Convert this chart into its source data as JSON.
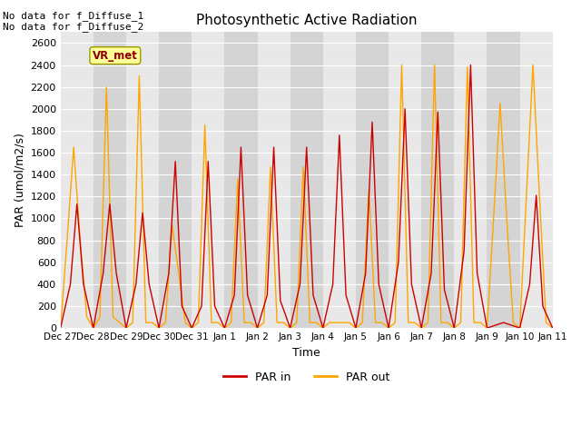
{
  "title": "Photosynthetic Active Radiation",
  "xlabel": "Time",
  "ylabel": "PAR (umol/m2/s)",
  "text_top_left": "No data for f_Diffuse_1\nNo data for f_Diffuse_2",
  "legend_box_label": "VR_met",
  "ylim": [
    0,
    2700
  ],
  "bg_color": "#e8e8e8",
  "bg_color2": "#d4d4d4",
  "par_in_color": "#cc0000",
  "par_out_color": "#ffa500",
  "tick_labels": [
    "Dec 27",
    "Dec 28",
    "Dec 29",
    "Dec 30",
    "Dec 31",
    "Jan 1",
    "Jan 2",
    "Jan 3",
    "Jan 4",
    "Jan 5",
    "Jan 6",
    "Jan 7",
    "Jan 8",
    "Jan 9",
    "Jan 10",
    "Jan 11"
  ],
  "figsize": [
    6.4,
    4.8
  ],
  "dpi": 100,
  "par_in_x": [
    0.0,
    0.3,
    0.5,
    0.7,
    1.0,
    1.0,
    1.3,
    1.5,
    1.7,
    2.0,
    2.0,
    2.3,
    2.5,
    2.7,
    3.0,
    3.0,
    3.3,
    3.5,
    3.7,
    4.0,
    4.0,
    4.3,
    4.5,
    4.7,
    5.0,
    5.0,
    5.3,
    5.5,
    5.7,
    6.0,
    6.0,
    6.3,
    6.5,
    6.7,
    7.0,
    7.0,
    7.3,
    7.5,
    7.7,
    8.0,
    8.0,
    8.3,
    8.5,
    8.7,
    9.0,
    9.0,
    9.3,
    9.5,
    9.7,
    10.0,
    10.0,
    10.3,
    10.5,
    10.7,
    11.0,
    11.0,
    11.3,
    11.5,
    11.7,
    12.0,
    12.0,
    12.3,
    12.5,
    12.7,
    13.0,
    13.0,
    13.3,
    13.5,
    13.7,
    14.0,
    14.0,
    14.3,
    14.5,
    14.7,
    15.0
  ],
  "par_in_y": [
    0,
    400,
    1130,
    400,
    0,
    0,
    500,
    1130,
    500,
    0,
    0,
    400,
    1050,
    400,
    0,
    0,
    500,
    1520,
    200,
    0,
    0,
    200,
    1520,
    200,
    0,
    0,
    300,
    1650,
    300,
    0,
    0,
    300,
    1650,
    250,
    0,
    0,
    400,
    1650,
    300,
    0,
    0,
    400,
    1760,
    300,
    0,
    0,
    500,
    1880,
    400,
    0,
    0,
    600,
    2000,
    400,
    0,
    0,
    500,
    1970,
    350,
    0,
    0,
    700,
    2400,
    500,
    0,
    0,
    30,
    50,
    30,
    0,
    0,
    400,
    1210,
    200,
    0
  ],
  "par_out_x": [
    0.0,
    0.2,
    0.4,
    0.6,
    0.8,
    1.0,
    1.0,
    1.2,
    1.4,
    1.6,
    1.8,
    2.0,
    2.0,
    2.2,
    2.4,
    2.6,
    2.8,
    3.0,
    3.0,
    3.2,
    3.4,
    3.6,
    3.8,
    4.0,
    4.0,
    4.2,
    4.4,
    4.6,
    4.8,
    5.0,
    5.0,
    5.2,
    5.4,
    5.6,
    5.8,
    6.0,
    6.0,
    6.2,
    6.4,
    6.6,
    6.8,
    7.0,
    7.0,
    7.2,
    7.4,
    7.6,
    7.8,
    8.0,
    8.0,
    8.2,
    8.4,
    8.6,
    8.8,
    9.0,
    9.0,
    9.2,
    9.4,
    9.6,
    9.8,
    10.0,
    10.0,
    10.2,
    10.4,
    10.6,
    10.8,
    11.0,
    11.0,
    11.2,
    11.4,
    11.6,
    11.8,
    12.0,
    12.0,
    12.2,
    12.4,
    12.6,
    12.8,
    13.0,
    13.0,
    13.2,
    13.4,
    13.6,
    13.8,
    14.0,
    14.0,
    14.2,
    14.4,
    14.6,
    14.8,
    15.0
  ],
  "par_out_y": [
    0,
    800,
    1650,
    800,
    100,
    0,
    0,
    100,
    2200,
    100,
    50,
    0,
    0,
    50,
    2300,
    50,
    50,
    0,
    0,
    50,
    940,
    500,
    50,
    0,
    0,
    50,
    1850,
    50,
    50,
    0,
    0,
    50,
    1360,
    50,
    50,
    0,
    0,
    50,
    1470,
    50,
    50,
    0,
    0,
    50,
    1470,
    50,
    50,
    0,
    0,
    50,
    50,
    50,
    50,
    0,
    0,
    50,
    1260,
    50,
    50,
    0,
    0,
    50,
    2400,
    50,
    50,
    0,
    0,
    50,
    2400,
    50,
    50,
    0,
    0,
    50,
    2380,
    50,
    50,
    0,
    0,
    1000,
    2050,
    1000,
    50,
    0,
    0,
    1200,
    2400,
    1200,
    50,
    0
  ]
}
